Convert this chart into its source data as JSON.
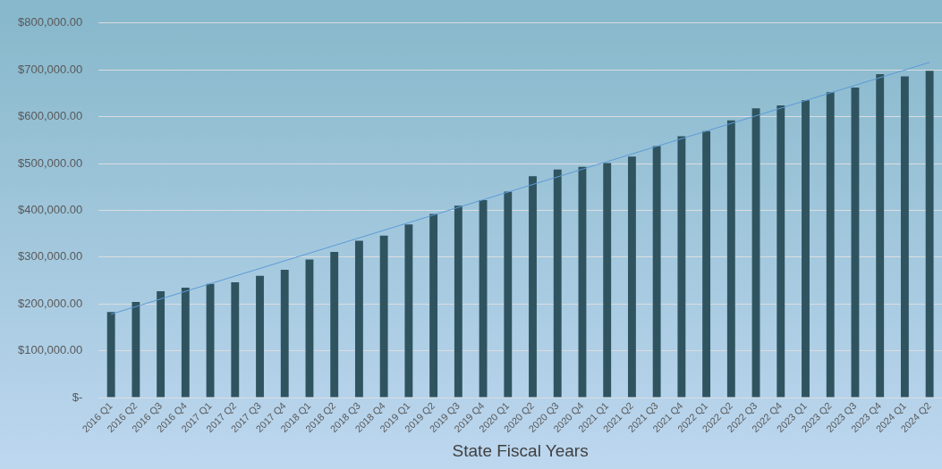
{
  "chart_data": {
    "type": "bar",
    "xlabel": "State Fiscal Years",
    "categories": [
      "2016 Q1",
      "2016 Q2",
      "2016 Q3",
      "2016 Q4",
      "2017 Q1",
      "2017 Q2",
      "2017 Q3",
      "2017 Q4",
      "2018 Q1",
      "2018 Q2",
      "2018 Q3",
      "2018 Q4",
      "2019 Q1",
      "2019 Q2",
      "2019 Q3",
      "2019 Q4",
      "2020 Q1",
      "2020 Q2",
      "2020 Q3",
      "2020 Q4",
      "2021 Q1",
      "2021 Q2",
      "2021 Q3",
      "2021 Q4",
      "2022 Q1",
      "2022 Q2",
      "2022 Q3",
      "2022 Q4",
      "2023 Q1",
      "2023 Q2",
      "2023 Q3",
      "2023 Q4",
      "2024 Q1",
      "2024 Q2"
    ],
    "series": [
      {
        "color": "#2f5460",
        "values": [
          183000,
          204000,
          227000,
          235000,
          243000,
          246000,
          260000,
          273000,
          295000,
          311000,
          335000,
          346000,
          370000,
          392000,
          410000,
          422000,
          440000,
          473000,
          487000,
          493000,
          501000,
          515000,
          537000,
          558000,
          569000,
          592000,
          618000,
          624000,
          635000,
          652000,
          662000,
          691000,
          686000,
          698000
        ]
      },
      {
        "type": "line",
        "color": "#5b9bd5",
        "x": [
          "2016 Q1",
          "2024 Q2"
        ],
        "values": [
          178000,
          716000
        ]
      }
    ],
    "ylim": [
      0,
      800000
    ],
    "yticks": [
      {
        "value": 0,
        "label": "$-"
      },
      {
        "value": 100000,
        "label": "$100,000.00"
      },
      {
        "value": 200000,
        "label": "$200,000.00"
      },
      {
        "value": 300000,
        "label": "$300,000.00"
      },
      {
        "value": 400000,
        "label": "$400,000.00"
      },
      {
        "value": 500000,
        "label": "$500,000.00"
      },
      {
        "value": 600000,
        "label": "$600,000.00"
      },
      {
        "value": 700000,
        "label": "$700,000.00"
      },
      {
        "value": 800000,
        "label": "$800,000.00"
      }
    ],
    "grid": "y",
    "legend": false
  }
}
